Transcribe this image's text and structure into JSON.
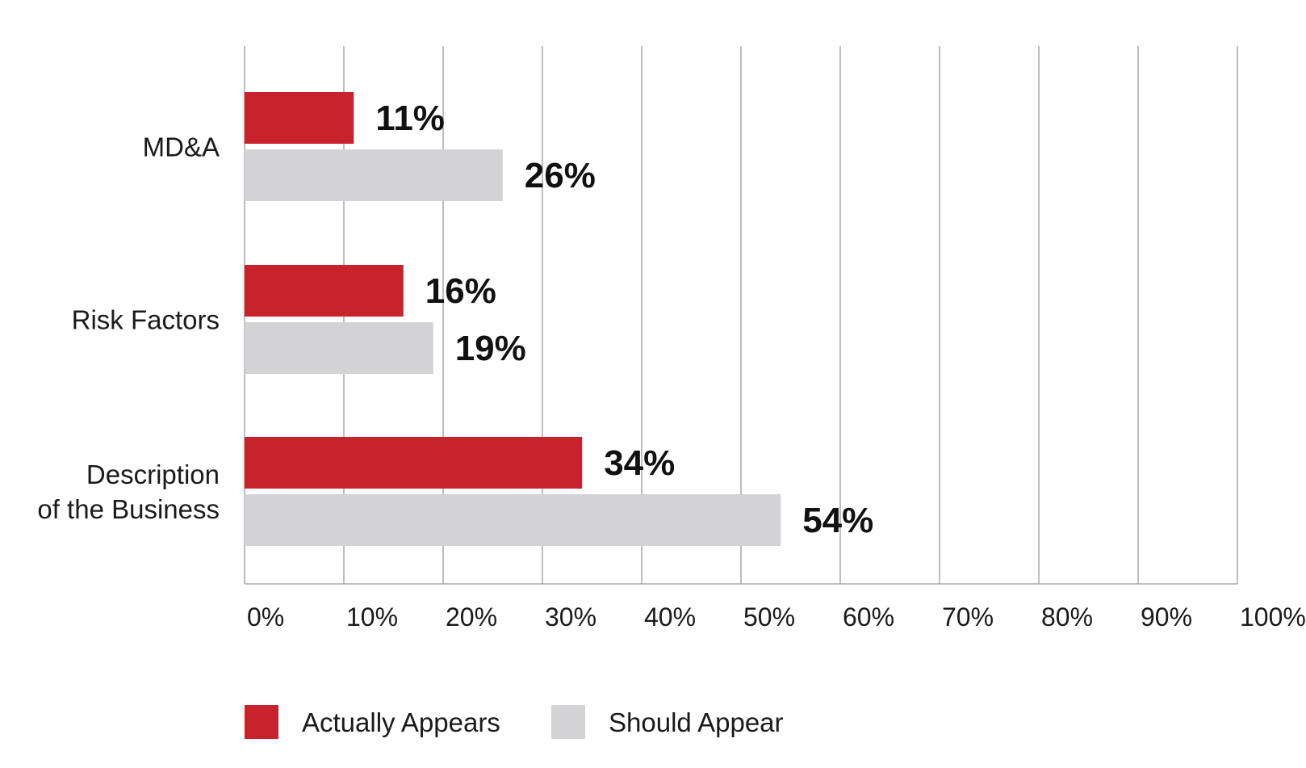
{
  "chart_data": {
    "type": "bar",
    "orientation": "horizontal",
    "categories": [
      "MD&A",
      "Risk Factors",
      "Description\nof the Business"
    ],
    "series": [
      {
        "name": "Actually Appears",
        "values": [
          11,
          16,
          34
        ],
        "labels": [
          "11%",
          "16%",
          "34%"
        ],
        "color": "#c8232c"
      },
      {
        "name": "Should Appear",
        "values": [
          26,
          19,
          54
        ],
        "labels": [
          "26%",
          "19%",
          "54%"
        ],
        "color": "#d3d3d6"
      }
    ],
    "xlim": [
      0,
      100
    ],
    "xticks": [
      0,
      10,
      20,
      30,
      40,
      50,
      60,
      70,
      80,
      90,
      100
    ],
    "xtick_labels": [
      "0%",
      "10%",
      "20%",
      "30%",
      "40%",
      "50%",
      "60%",
      "70%",
      "80%",
      "90%",
      "100%"
    ],
    "grid": true,
    "gridline_color": "#9a9a9a",
    "legend_position": "bottom-left"
  }
}
